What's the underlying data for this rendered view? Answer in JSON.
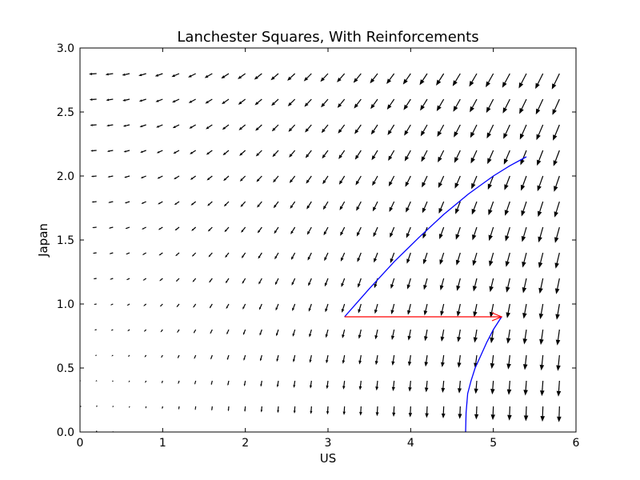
{
  "chart_data": {
    "type": "quiver",
    "title": "Lanchester Squares, With Reinforcements",
    "xlabel": "US",
    "ylabel": "Japan",
    "xlim": [
      0,
      6
    ],
    "ylim": [
      0,
      3
    ],
    "xticks": [
      "0",
      "1",
      "2",
      "3",
      "4",
      "5",
      "6"
    ],
    "yticks": [
      "0.0",
      "0.5",
      "1.0",
      "1.5",
      "2.0",
      "2.5",
      "3.0"
    ],
    "field": {
      "x_start": 0,
      "x_end": 5.8,
      "x_step": 0.2,
      "y_values": [
        0.0,
        0.2,
        0.4,
        0.6,
        0.8,
        1.0,
        1.2,
        1.4,
        1.6,
        1.8,
        2.0,
        2.2,
        2.4,
        2.6,
        2.8
      ],
      "dx_expression": "-y",
      "dy_expression": "-x",
      "color": "#000000"
    },
    "series": [
      {
        "name": "trajectory-upper",
        "color": "#0000ff",
        "x": [
          3.2,
          3.5,
          3.8,
          4.1,
          4.4,
          4.7,
          5.0,
          5.2,
          5.4
        ],
        "y": [
          0.9,
          1.12,
          1.33,
          1.52,
          1.7,
          1.86,
          2.0,
          2.08,
          2.15
        ]
      },
      {
        "name": "trajectory-lower",
        "color": "#0000ff",
        "x": [
          5.1,
          5.0,
          4.92,
          4.85,
          4.78,
          4.73,
          4.69,
          4.67,
          4.665
        ],
        "y": [
          0.9,
          0.8,
          0.7,
          0.6,
          0.5,
          0.4,
          0.3,
          0.15,
          0.0
        ]
      }
    ],
    "annotations": [
      {
        "name": "reinforcement-arrow",
        "color": "#ff0000",
        "from": [
          3.2,
          0.9
        ],
        "to": [
          5.1,
          0.9
        ]
      }
    ]
  }
}
